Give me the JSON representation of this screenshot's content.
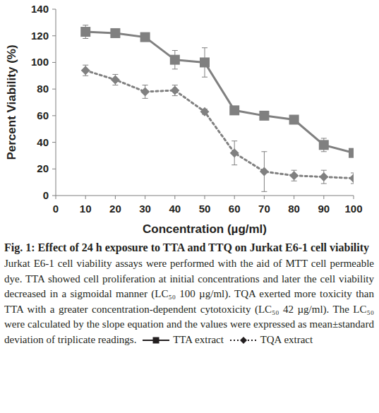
{
  "chart_data": {
    "type": "line",
    "title": "Fig. 1: Effect of 24 h exposure to TTA and TTQ on Jurkat E6-1 cell viability",
    "subtitle": "Jurkat E6-1 cell viability assays were performed with the aid of MTT cell permeable dye. TTA showed cell proliferation at initial concentrations and later the cell viability decreased in a sigmoidal manner (LC₅₀ 100 µg/ml). TQA exerted more toxicity than TTA with a greater concentration-dependent cytotoxicity (LC₅₀ 42 µg/ml). The LC₅₀ were calculated by the slope equation and the values were expressed as mean±standard deviation of triplicate readings.",
    "x_label": "Concentration (µg/ml)",
    "y_label": "Percent Viability (%)",
    "x": [
      10,
      20,
      30,
      40,
      50,
      60,
      70,
      80,
      90,
      100
    ],
    "xlim": [
      0,
      100
    ],
    "xticks": [
      0,
      10,
      20,
      30,
      40,
      50,
      60,
      70,
      80,
      90,
      100
    ],
    "ylim": [
      0,
      140
    ],
    "yticks": [
      0,
      20,
      40,
      60,
      80,
      100,
      120,
      140
    ],
    "grid": false,
    "series": [
      {
        "name": "TTA extract",
        "color": "#808080",
        "marker": "square",
        "line_style": "solid",
        "values": [
          123,
          122,
          119,
          102,
          100,
          64,
          60,
          57,
          38,
          32
        ],
        "errors": [
          5,
          2,
          2,
          7,
          11,
          2,
          2,
          2,
          5,
          2
        ]
      },
      {
        "name": "TQA extract",
        "color": "#808080",
        "marker": "diamond",
        "line_style": "dotted",
        "values": [
          94,
          87,
          78,
          79,
          63,
          32,
          18,
          15,
          14,
          13
        ],
        "errors": [
          4,
          4,
          5,
          4,
          2,
          9,
          15,
          4,
          5,
          4
        ]
      }
    ]
  }
}
